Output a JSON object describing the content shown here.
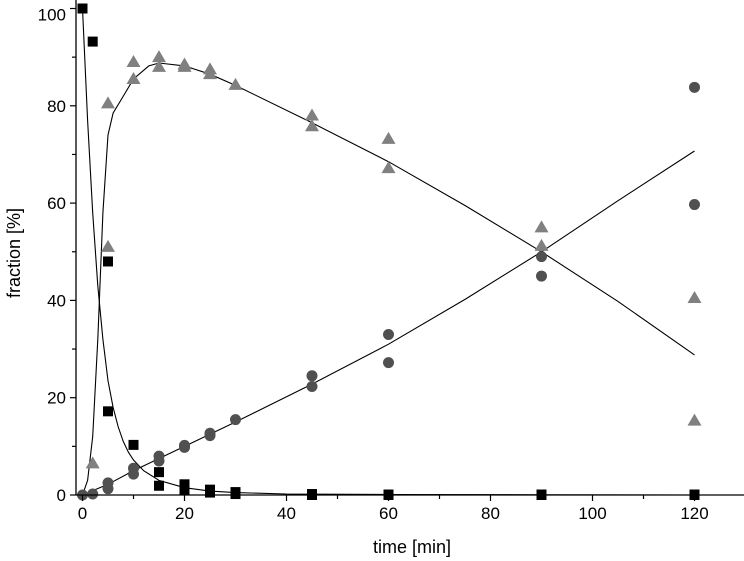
{
  "chart_data": {
    "type": "scatter",
    "title": "",
    "xlabel": "time [min]",
    "ylabel": "fraction [%]",
    "xlim": [
      -1,
      129
    ],
    "ylim": [
      0,
      100
    ],
    "xticks": [
      0,
      20,
      40,
      60,
      80,
      100,
      120
    ],
    "yticks": [
      0,
      20,
      40,
      60,
      80,
      100
    ],
    "grid": false,
    "legend": "none",
    "series": [
      {
        "name": "squares",
        "marker": "square",
        "color": "#000000",
        "points": [
          [
            0,
            100
          ],
          [
            2,
            93.2
          ],
          [
            5,
            48
          ],
          [
            5,
            17.2
          ],
          [
            10,
            10.3
          ],
          [
            15,
            4.7
          ],
          [
            15,
            1.9
          ],
          [
            20,
            2.2
          ],
          [
            20,
            1.1
          ],
          [
            25,
            1.1
          ],
          [
            25,
            0.5
          ],
          [
            30,
            0.6
          ],
          [
            30,
            0.2
          ],
          [
            45,
            0.2
          ],
          [
            45,
            0
          ],
          [
            60,
            0.1
          ],
          [
            60,
            0
          ],
          [
            90,
            0.1
          ],
          [
            90,
            0
          ],
          [
            120,
            0.1
          ],
          [
            120,
            0
          ]
        ],
        "fit": [
          [
            0,
            100
          ],
          [
            1,
            77
          ],
          [
            2,
            58
          ],
          [
            3,
            43
          ],
          [
            4,
            32
          ],
          [
            5,
            23.5
          ],
          [
            6,
            18
          ],
          [
            7,
            14
          ],
          [
            8,
            11
          ],
          [
            9,
            8.8
          ],
          [
            10,
            7.2
          ],
          [
            12,
            5
          ],
          [
            15,
            3
          ],
          [
            20,
            1.5
          ],
          [
            25,
            0.8
          ],
          [
            30,
            0.5
          ],
          [
            40,
            0.2
          ],
          [
            60,
            0.1
          ],
          [
            90,
            0.05
          ],
          [
            120,
            0
          ]
        ]
      },
      {
        "name": "triangles",
        "marker": "triangle",
        "color": "#808080",
        "points": [
          [
            2,
            6.5
          ],
          [
            5,
            80.5
          ],
          [
            5,
            51
          ],
          [
            10,
            89
          ],
          [
            10,
            85.5
          ],
          [
            15,
            90
          ],
          [
            15,
            88
          ],
          [
            20,
            88.5
          ],
          [
            20,
            88
          ],
          [
            25,
            87.5
          ],
          [
            25,
            86.5
          ],
          [
            30,
            84.3
          ],
          [
            45,
            78
          ],
          [
            45,
            75.8
          ],
          [
            60,
            73.2
          ],
          [
            60,
            67.2
          ],
          [
            90,
            55
          ],
          [
            90,
            51.2
          ],
          [
            120,
            40.5
          ],
          [
            120,
            15.3
          ]
        ],
        "fit": [
          [
            0,
            0
          ],
          [
            1,
            3
          ],
          [
            2,
            12
          ],
          [
            3,
            32
          ],
          [
            4,
            58
          ],
          [
            5,
            74
          ],
          [
            6,
            78.5
          ],
          [
            8,
            82
          ],
          [
            10,
            85.5
          ],
          [
            13,
            88.2
          ],
          [
            15,
            88.8
          ],
          [
            20,
            88.2
          ],
          [
            25,
            86.5
          ],
          [
            30,
            84.2
          ],
          [
            45,
            76.5
          ],
          [
            60,
            68.5
          ],
          [
            75,
            59.5
          ],
          [
            90,
            50
          ],
          [
            105,
            39.8
          ],
          [
            120,
            28.8
          ]
        ]
      },
      {
        "name": "circles",
        "marker": "circle",
        "color": "#505050",
        "points": [
          [
            0,
            0
          ],
          [
            2,
            0.2
          ],
          [
            5,
            2.5
          ],
          [
            5,
            1.3
          ],
          [
            10,
            5.5
          ],
          [
            10,
            4.3
          ],
          [
            15,
            8
          ],
          [
            15,
            7
          ],
          [
            20,
            10.2
          ],
          [
            20,
            9.8
          ],
          [
            25,
            12.7
          ],
          [
            25,
            12.2
          ],
          [
            30,
            15.5
          ],
          [
            45,
            24.5
          ],
          [
            45,
            22.3
          ],
          [
            60,
            33
          ],
          [
            60,
            27.2
          ],
          [
            90,
            49
          ],
          [
            90,
            45
          ],
          [
            120,
            83.8
          ],
          [
            120,
            59.7
          ]
        ],
        "fit": [
          [
            0,
            0
          ],
          [
            5,
            2.2
          ],
          [
            10,
            5
          ],
          [
            15,
            7.5
          ],
          [
            20,
            10
          ],
          [
            30,
            15
          ],
          [
            45,
            22.8
          ],
          [
            60,
            31
          ],
          [
            75,
            40.2
          ],
          [
            90,
            50
          ],
          [
            105,
            60.5
          ],
          [
            120,
            70.7
          ]
        ]
      }
    ]
  }
}
